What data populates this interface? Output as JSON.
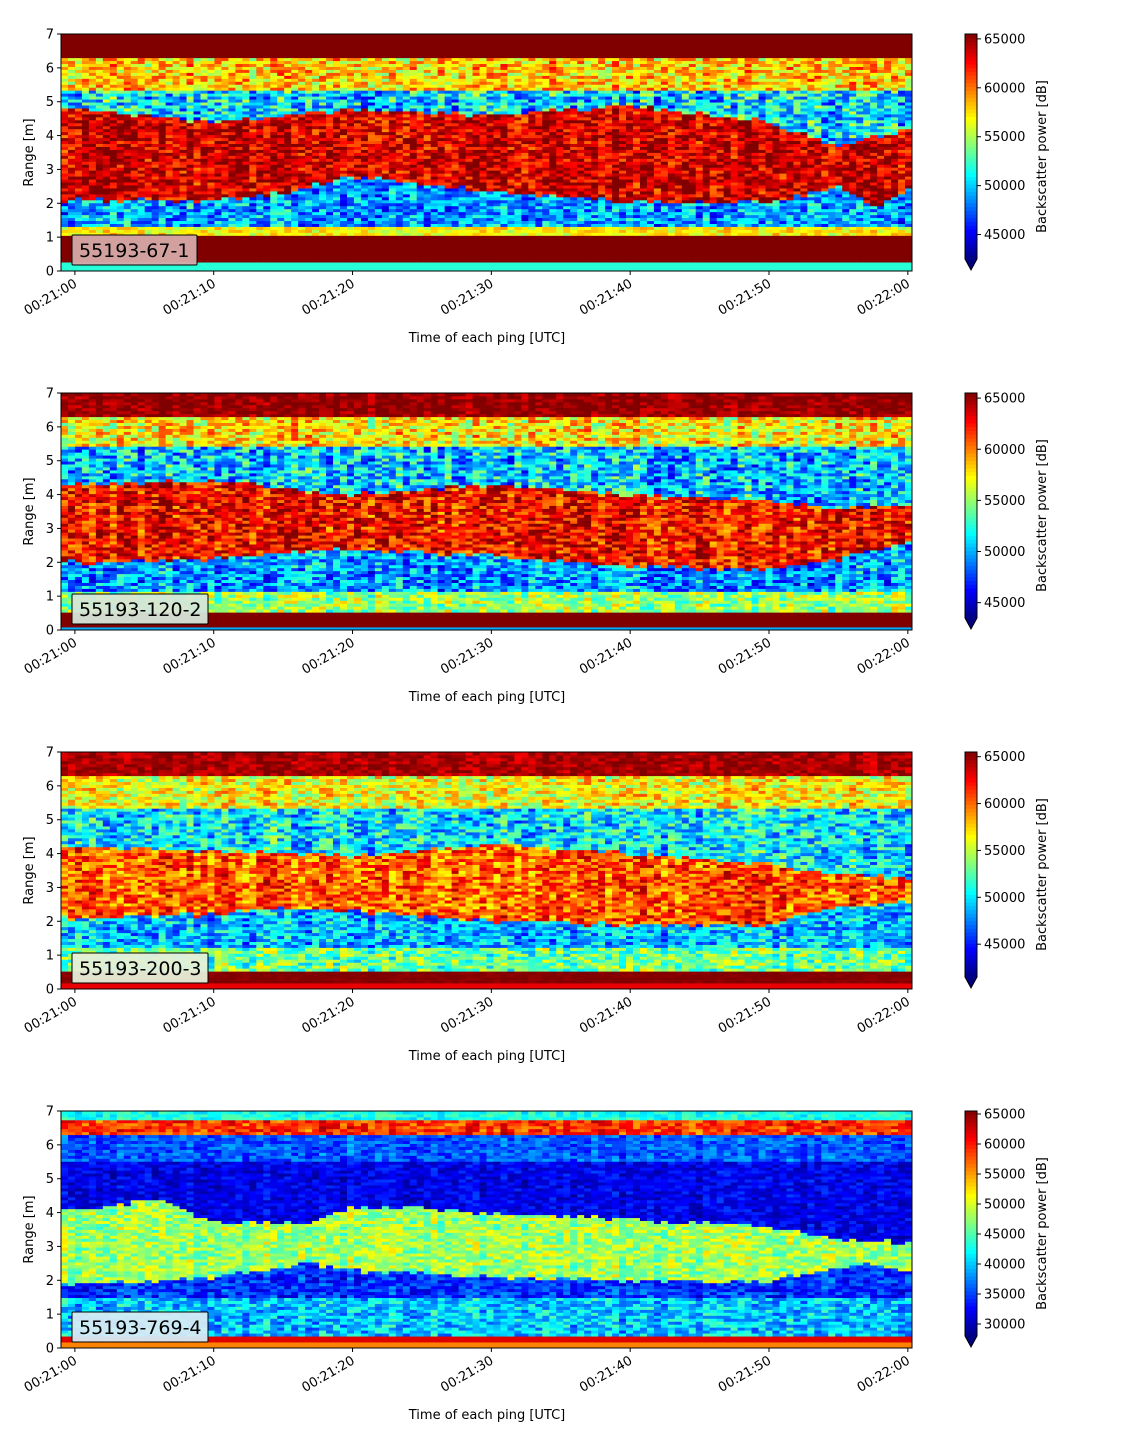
{
  "chart_data": [
    {
      "type": "heatmap",
      "label": "55193-67-1",
      "label_bg": "#d7a9a9",
      "xlabel": "Time of each ping [UTC]",
      "ylabel": "Range [m]",
      "x_ticks": [
        "00:21:00",
        "00:21:10",
        "00:21:20",
        "00:21:30",
        "00:21:40",
        "00:21:50",
        "00:22:00"
      ],
      "xlim_seconds": [
        -1,
        60.3
      ],
      "ylim": [
        0,
        7
      ],
      "y_ticks": [
        0,
        1,
        2,
        3,
        4,
        5,
        6,
        7
      ],
      "colorbar": {
        "label": "Backscatter power [dB]",
        "min": 42500,
        "max": 65500,
        "ticks": [
          45000,
          50000,
          55000,
          60000,
          65000
        ],
        "colormap": "jet",
        "extend": "min"
      },
      "bands": [
        {
          "y": [
            0.0,
            0.22
          ],
          "v": 52000,
          "n": 0
        },
        {
          "y": [
            0.22,
            1.05
          ],
          "v": 66000,
          "n": 0
        },
        {
          "y": [
            1.05,
            1.3
          ],
          "v": 57000,
          "n": 2000
        },
        {
          "y": [
            1.3,
            "b1"
          ],
          "v": 49000,
          "n": 3500
        },
        {
          "y": [
            "b1",
            "b2"
          ],
          "v": 63500,
          "n": 3000
        },
        {
          "y": [
            "b2",
            5.3
          ],
          "v": 50500,
          "n": 4500
        },
        {
          "y": [
            5.3,
            6.3
          ],
          "v": 58000,
          "n": 3500
        },
        {
          "y": [
            6.3,
            7.0
          ],
          "v": 66000,
          "n": 0
        }
      ],
      "boundaries": {
        "b1": {
          "t": [
            0,
            10,
            15,
            20,
            30,
            40,
            50,
            55,
            58,
            60
          ],
          "y": [
            2.1,
            2.1,
            2.3,
            2.8,
            2.35,
            2.05,
            2.05,
            2.5,
            1.9,
            2.4
          ]
        },
        "b2": {
          "t": [
            0,
            10,
            20,
            30,
            40,
            50,
            55,
            60
          ],
          "y": [
            4.8,
            4.4,
            4.8,
            4.6,
            4.9,
            4.4,
            3.7,
            4.2
          ]
        }
      }
    },
    {
      "type": "heatmap",
      "label": "55193-120-2",
      "label_bg": "#d6e6d8",
      "xlabel": "Time of each ping [UTC]",
      "ylabel": "Range [m]",
      "x_ticks": [
        "00:21:00",
        "00:21:10",
        "00:21:20",
        "00:21:30",
        "00:21:40",
        "00:21:50",
        "00:22:00"
      ],
      "xlim_seconds": [
        -1,
        60.3
      ],
      "ylim": [
        0,
        7
      ],
      "y_ticks": [
        0,
        1,
        2,
        3,
        4,
        5,
        6,
        7
      ],
      "colorbar": {
        "label": "Backscatter power [dB]",
        "min": 43500,
        "max": 65500,
        "ticks": [
          45000,
          50000,
          55000,
          60000,
          65000
        ],
        "colormap": "jet",
        "extend": "min"
      },
      "bands": [
        {
          "y": [
            0.0,
            0.1
          ],
          "v": 50000,
          "n": 0
        },
        {
          "y": [
            0.1,
            0.5
          ],
          "v": 66000,
          "n": 0
        },
        {
          "y": [
            0.5,
            1.15
          ],
          "v": 55000,
          "n": 3000
        },
        {
          "y": [
            1.15,
            "b1"
          ],
          "v": 49500,
          "n": 3500
        },
        {
          "y": [
            "b1",
            "b2"
          ],
          "v": 62500,
          "n": 3200
        },
        {
          "y": [
            "b2",
            5.4
          ],
          "v": 50500,
          "n": 4000
        },
        {
          "y": [
            5.4,
            6.3
          ],
          "v": 57500,
          "n": 3500
        },
        {
          "y": [
            6.3,
            7.0
          ],
          "v": 65000,
          "n": 1500
        }
      ],
      "boundaries": {
        "b1": {
          "t": [
            0,
            10,
            15,
            20,
            30,
            40,
            50,
            55,
            60
          ],
          "y": [
            2.0,
            2.1,
            2.3,
            2.4,
            2.2,
            1.9,
            1.8,
            2.1,
            2.6
          ]
        },
        "b2": {
          "t": [
            0,
            10,
            20,
            30,
            40,
            50,
            55,
            60
          ],
          "y": [
            4.3,
            4.4,
            4.0,
            4.3,
            4.0,
            3.8,
            3.6,
            3.7
          ]
        }
      }
    },
    {
      "type": "heatmap",
      "label": "55193-200-3",
      "label_bg": "#e6efd8",
      "xlabel": "Time of each ping [UTC]",
      "ylabel": "Range [m]",
      "x_ticks": [
        "00:21:00",
        "00:21:10",
        "00:21:20",
        "00:21:30",
        "00:21:40",
        "00:21:50",
        "00:22:00"
      ],
      "xlim_seconds": [
        -1,
        60.3
      ],
      "ylim": [
        0,
        7
      ],
      "y_ticks": [
        0,
        1,
        2,
        3,
        4,
        5,
        6,
        7
      ],
      "colorbar": {
        "label": "Backscatter power [dB]",
        "min": 41500,
        "max": 65500,
        "ticks": [
          45000,
          50000,
          55000,
          60000,
          65000
        ],
        "colormap": "jet",
        "extend": "min"
      },
      "bands": [
        {
          "y": [
            0.0,
            0.2
          ],
          "v": 63000,
          "n": 0
        },
        {
          "y": [
            0.2,
            0.55
          ],
          "v": 65500,
          "n": 500
        },
        {
          "y": [
            0.55,
            1.2
          ],
          "v": 53000,
          "n": 3500
        },
        {
          "y": [
            1.2,
            "b1"
          ],
          "v": 49000,
          "n": 3500
        },
        {
          "y": [
            "b1",
            "b2"
          ],
          "v": 60500,
          "n": 3500
        },
        {
          "y": [
            "b2",
            5.3
          ],
          "v": 50000,
          "n": 4000
        },
        {
          "y": [
            5.3,
            6.3
          ],
          "v": 56500,
          "n": 3500
        },
        {
          "y": [
            6.3,
            7.0
          ],
          "v": 64500,
          "n": 1500
        }
      ],
      "boundaries": {
        "b1": {
          "t": [
            0,
            10,
            15,
            20,
            30,
            40,
            50,
            55,
            60
          ],
          "y": [
            2.1,
            2.2,
            2.4,
            2.3,
            2.0,
            1.9,
            1.9,
            2.4,
            2.6
          ]
        },
        "b2": {
          "t": [
            0,
            10,
            20,
            30,
            40,
            50,
            55,
            60
          ],
          "y": [
            4.2,
            4.1,
            3.9,
            4.3,
            4.0,
            3.7,
            3.4,
            3.3
          ]
        }
      }
    },
    {
      "type": "heatmap",
      "label": "55193-769-4",
      "label_bg": "#d6ecf4",
      "xlabel": "Time of each ping [UTC]",
      "ylabel": "Range [m]",
      "x_ticks": [
        "00:21:00",
        "00:21:10",
        "00:21:20",
        "00:21:30",
        "00:21:40",
        "00:21:50",
        "00:22:00"
      ],
      "xlim_seconds": [
        -1,
        60.3
      ],
      "ylim": [
        0,
        7
      ],
      "y_ticks": [
        0,
        1,
        2,
        3,
        4,
        5,
        6,
        7
      ],
      "colorbar": {
        "label": "Backscatter power [dB]",
        "min": 28000,
        "max": 65500,
        "ticks": [
          30000,
          35000,
          40000,
          45000,
          50000,
          55000,
          60000,
          65000
        ],
        "colormap": "jet",
        "extend": "min"
      },
      "bands": [
        {
          "y": [
            0.0,
            0.2
          ],
          "v": 56000,
          "n": 0
        },
        {
          "y": [
            0.2,
            0.33
          ],
          "v": 62000,
          "n": 0
        },
        {
          "y": [
            0.33,
            1.5
          ],
          "v": 40000,
          "n": 4500
        },
        {
          "y": [
            1.5,
            "b1"
          ],
          "v": 34500,
          "n": 3500
        },
        {
          "y": [
            "b1",
            "b2"
          ],
          "v": 48000,
          "n": 4000
        },
        {
          "y": [
            "b2",
            5.5
          ],
          "v": 32000,
          "n": 2500
        },
        {
          "y": [
            5.5,
            6.3
          ],
          "v": 36000,
          "n": 3000
        },
        {
          "y": [
            6.3,
            6.7
          ],
          "v": 59000,
          "n": 4000
        },
        {
          "y": [
            6.7,
            7.0
          ],
          "v": 43000,
          "n": 2500
        }
      ],
      "boundaries": {
        "b1": {
          "t": [
            0,
            10,
            17,
            20,
            30,
            40,
            50,
            56,
            60
          ],
          "y": [
            1.9,
            2.1,
            2.5,
            2.3,
            2.1,
            2.0,
            2.0,
            2.5,
            2.3
          ]
        },
        "b2": {
          "t": [
            0,
            6,
            10,
            17,
            20,
            30,
            40,
            50,
            56,
            60
          ],
          "y": [
            4.1,
            4.4,
            3.7,
            3.7,
            4.2,
            4.0,
            3.8,
            3.6,
            3.2,
            3.1
          ]
        }
      }
    }
  ]
}
